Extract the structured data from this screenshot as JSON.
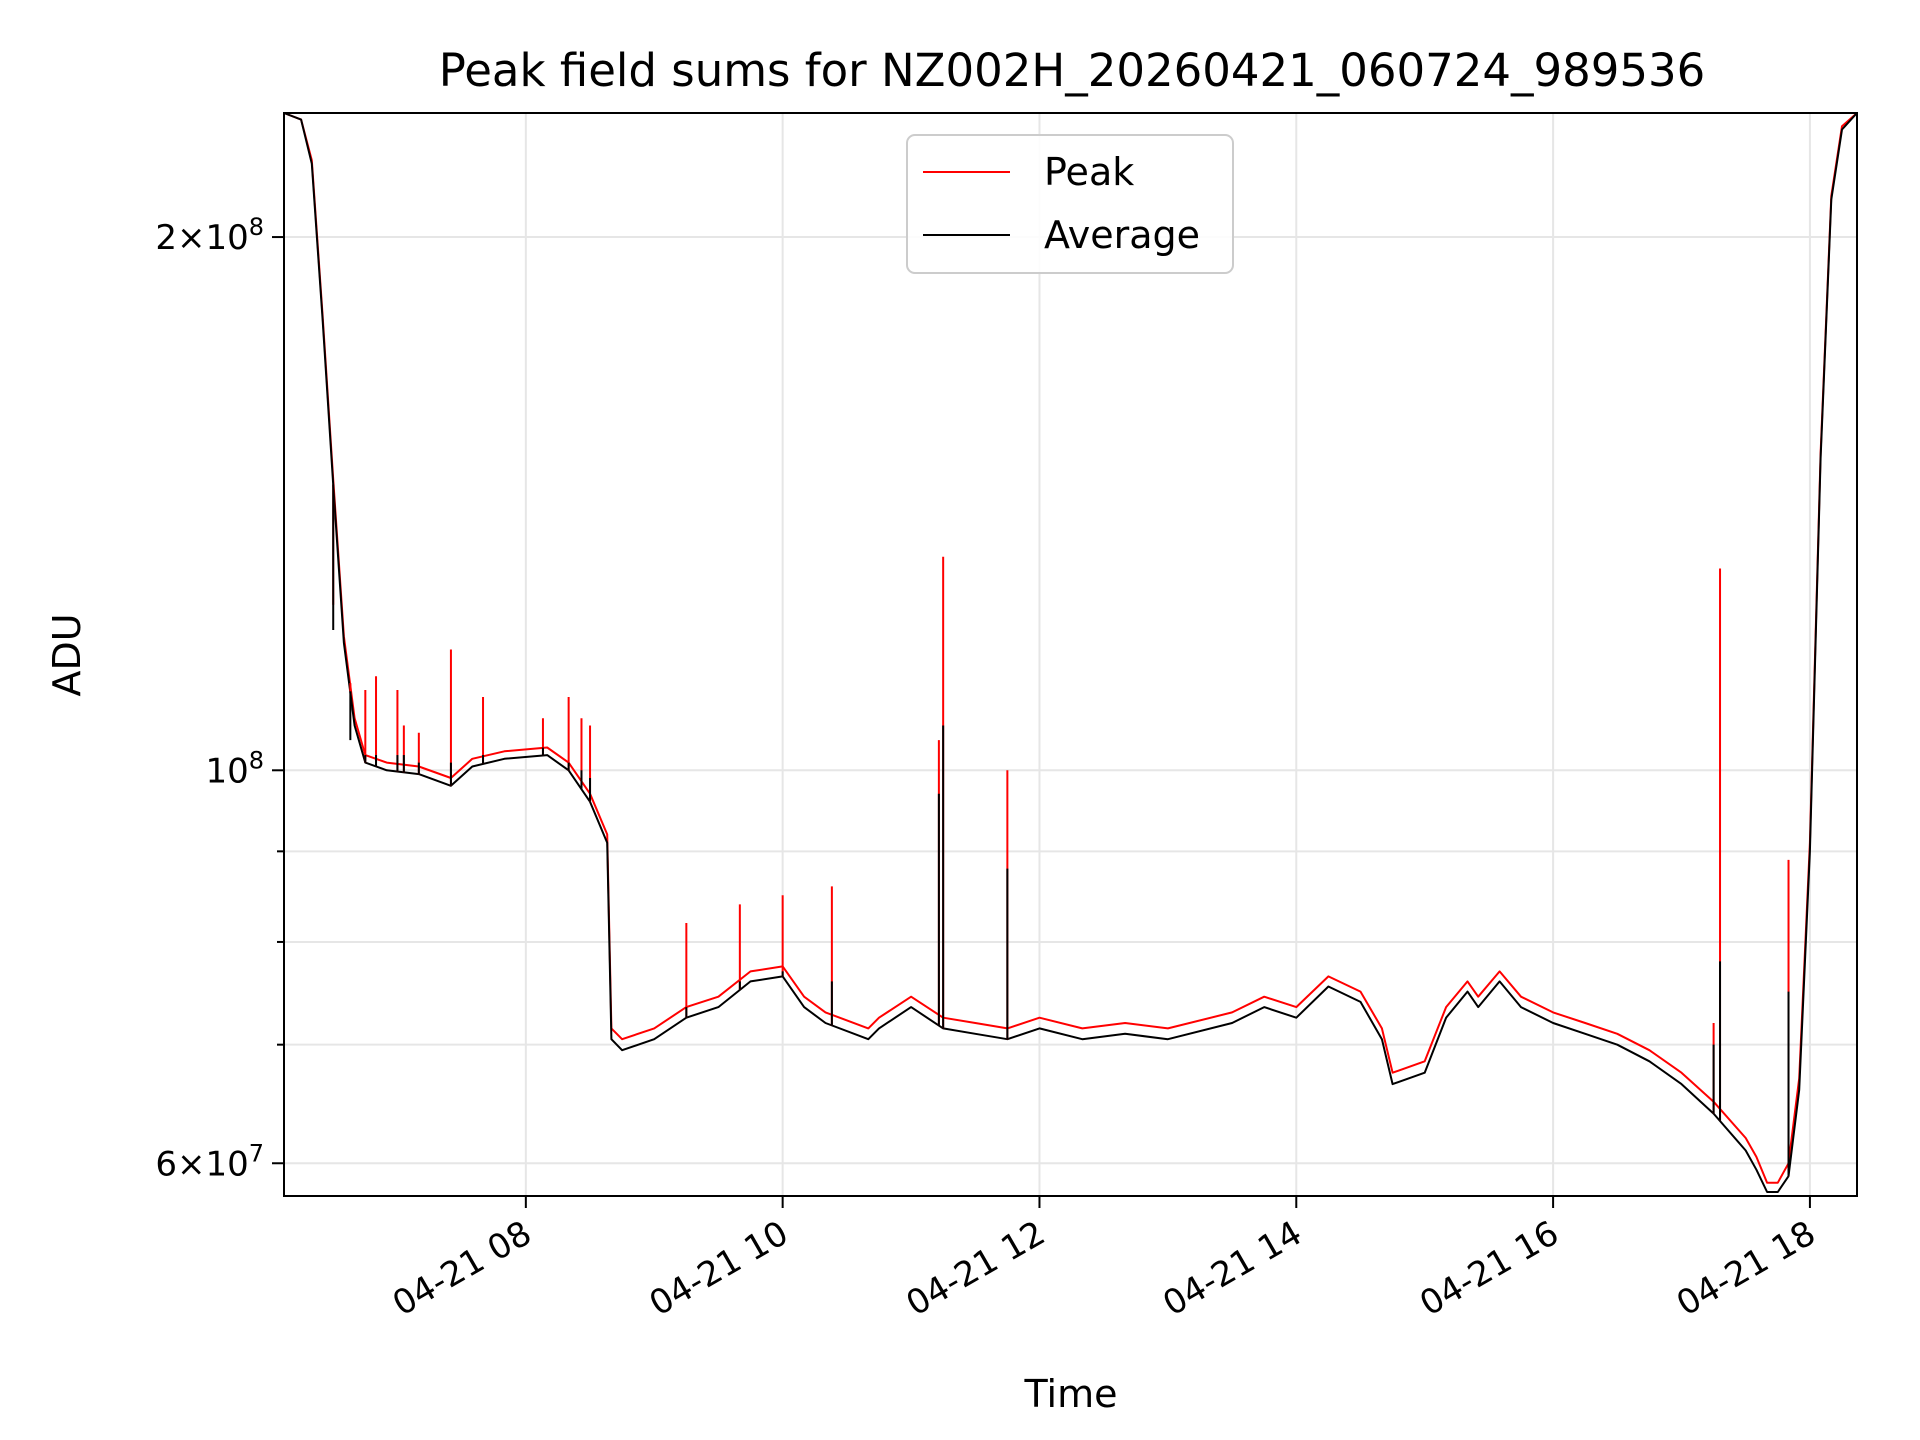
{
  "chart_data": {
    "type": "line",
    "title": "Peak field sums for NZ002H_20260421_060724_989536",
    "xlabel": "Time",
    "ylabel": "ADU",
    "y_scale": "log",
    "ylim": [
      57500000,
      235000000
    ],
    "xlim": [
      "2026-04-21 06:07",
      "2026-04-21 18:22"
    ],
    "grid": true,
    "legend_position": "top-center",
    "x_tick_labels": [
      "04-21 08",
      "04-21 10",
      "04-21 12",
      "04-21 14",
      "04-21 16",
      "04-21 18"
    ],
    "x_ticks": [
      "2026-04-21 08:00",
      "2026-04-21 10:00",
      "2026-04-21 12:00",
      "2026-04-21 14:00",
      "2026-04-21 16:00",
      "2026-04-21 18:00"
    ],
    "y_tick_labels": [
      {
        "value": 200000000,
        "mantissa": "2",
        "exponent": "8"
      },
      {
        "value": 100000000,
        "mantissa": "",
        "exponent": "8"
      },
      {
        "value": 60000000,
        "mantissa": "6",
        "exponent": "7"
      }
    ],
    "y_minor_ticks": [
      70000000,
      80000000,
      90000000
    ],
    "series": [
      {
        "name": "Average",
        "color": "#000000",
        "x": [
          "2026-04-21 06:07",
          "2026-04-21 06:15",
          "2026-04-21 06:20",
          "2026-04-21 06:25",
          "2026-04-21 06:30",
          "2026-04-21 06:35",
          "2026-04-21 06:40",
          "2026-04-21 06:45",
          "2026-04-21 06:55",
          "2026-04-21 07:10",
          "2026-04-21 07:25",
          "2026-04-21 07:35",
          "2026-04-21 07:50",
          "2026-04-21 08:10",
          "2026-04-21 08:20",
          "2026-04-21 08:30",
          "2026-04-21 08:38",
          "2026-04-21 08:40",
          "2026-04-21 08:45",
          "2026-04-21 09:00",
          "2026-04-21 09:15",
          "2026-04-21 09:30",
          "2026-04-21 09:45",
          "2026-04-21 10:00",
          "2026-04-21 10:10",
          "2026-04-21 10:20",
          "2026-04-21 10:40",
          "2026-04-21 10:45",
          "2026-04-21 11:00",
          "2026-04-21 11:15",
          "2026-04-21 11:30",
          "2026-04-21 11:45",
          "2026-04-21 12:00",
          "2026-04-21 12:20",
          "2026-04-21 12:40",
          "2026-04-21 13:00",
          "2026-04-21 13:30",
          "2026-04-21 13:45",
          "2026-04-21 14:00",
          "2026-04-21 14:15",
          "2026-04-21 14:30",
          "2026-04-21 14:40",
          "2026-04-21 14:45",
          "2026-04-21 15:00",
          "2026-04-21 15:10",
          "2026-04-21 15:20",
          "2026-04-21 15:25",
          "2026-04-21 15:35",
          "2026-04-21 15:45",
          "2026-04-21 16:00",
          "2026-04-21 16:15",
          "2026-04-21 16:30",
          "2026-04-21 16:45",
          "2026-04-21 17:00",
          "2026-04-21 17:15",
          "2026-04-21 17:30",
          "2026-04-21 17:35",
          "2026-04-21 17:40",
          "2026-04-21 17:45",
          "2026-04-21 17:50",
          "2026-04-21 17:55",
          "2026-04-21 18:00",
          "2026-04-21 18:05",
          "2026-04-21 18:10",
          "2026-04-21 18:15",
          "2026-04-21 18:22"
        ],
        "y": [
          235000000,
          233000000,
          220000000,
          180000000,
          145000000,
          118000000,
          106000000,
          101000000,
          100000000,
          99500000,
          98000000,
          100500000,
          101500000,
          102000000,
          100000000,
          96000000,
          91000000,
          70500000,
          69500000,
          70500000,
          72500000,
          73500000,
          76000000,
          76500000,
          73500000,
          72000000,
          70500000,
          71500000,
          73500000,
          71500000,
          71000000,
          70500000,
          71500000,
          70500000,
          71000000,
          70500000,
          72000000,
          73500000,
          72500000,
          75500000,
          74000000,
          70500000,
          66500000,
          67500000,
          72500000,
          75000000,
          73500000,
          76000000,
          73500000,
          72000000,
          71000000,
          70000000,
          68500000,
          66500000,
          64000000,
          61000000,
          59500000,
          57800000,
          57800000,
          59000000,
          66000000,
          90000000,
          150000000,
          210000000,
          230000000,
          235000000
        ]
      },
      {
        "name": "Peak",
        "color": "#ff0000",
        "x": [
          "2026-04-21 06:07",
          "2026-04-21 06:15",
          "2026-04-21 06:20",
          "2026-04-21 06:25",
          "2026-04-21 06:30",
          "2026-04-21 06:35",
          "2026-04-21 06:40",
          "2026-04-21 06:45",
          "2026-04-21 06:55",
          "2026-04-21 07:10",
          "2026-04-21 07:25",
          "2026-04-21 07:35",
          "2026-04-21 07:50",
          "2026-04-21 08:10",
          "2026-04-21 08:20",
          "2026-04-21 08:30",
          "2026-04-21 08:38",
          "2026-04-21 08:40",
          "2026-04-21 08:45",
          "2026-04-21 09:00",
          "2026-04-21 09:15",
          "2026-04-21 09:30",
          "2026-04-21 09:45",
          "2026-04-21 10:00",
          "2026-04-21 10:10",
          "2026-04-21 10:20",
          "2026-04-21 10:40",
          "2026-04-21 10:45",
          "2026-04-21 11:00",
          "2026-04-21 11:15",
          "2026-04-21 11:30",
          "2026-04-21 11:45",
          "2026-04-21 12:00",
          "2026-04-21 12:20",
          "2026-04-21 12:40",
          "2026-04-21 13:00",
          "2026-04-21 13:30",
          "2026-04-21 13:45",
          "2026-04-21 14:00",
          "2026-04-21 14:15",
          "2026-04-21 14:30",
          "2026-04-21 14:40",
          "2026-04-21 14:45",
          "2026-04-21 15:00",
          "2026-04-21 15:10",
          "2026-04-21 15:20",
          "2026-04-21 15:25",
          "2026-04-21 15:35",
          "2026-04-21 15:45",
          "2026-04-21 16:00",
          "2026-04-21 16:15",
          "2026-04-21 16:30",
          "2026-04-21 16:45",
          "2026-04-21 17:00",
          "2026-04-21 17:15",
          "2026-04-21 17:30",
          "2026-04-21 17:35",
          "2026-04-21 17:40",
          "2026-04-21 17:45",
          "2026-04-21 17:50",
          "2026-04-21 17:55",
          "2026-04-21 18:00",
          "2026-04-21 18:05",
          "2026-04-21 18:10",
          "2026-04-21 18:15",
          "2026-04-21 18:22"
        ],
        "y": [
          235000000,
          233000000,
          221000000,
          181000000,
          146000000,
          119000000,
          107000000,
          102000000,
          101000000,
          100500000,
          99000000,
          101500000,
          102500000,
          103000000,
          101000000,
          97000000,
          92000000,
          71500000,
          70500000,
          71500000,
          73500000,
          74500000,
          77000000,
          77500000,
          74500000,
          73000000,
          71500000,
          72500000,
          74500000,
          72500000,
          72000000,
          71500000,
          72500000,
          71500000,
          72000000,
          71500000,
          73000000,
          74500000,
          73500000,
          76500000,
          75000000,
          71500000,
          67500000,
          68500000,
          73500000,
          76000000,
          74500000,
          77000000,
          74500000,
          73000000,
          72000000,
          71000000,
          69500000,
          67500000,
          65000000,
          62000000,
          60500000,
          58500000,
          58500000,
          60000000,
          67000000,
          91000000,
          151000000,
          211000000,
          231000000,
          235000000
        ]
      }
    ],
    "spikes": [
      {
        "x": "2026-04-21 06:30",
        "peak": 124000000,
        "average": 120000000
      },
      {
        "x": "2026-04-21 06:38",
        "peak": 112000000,
        "average": 104000000
      },
      {
        "x": "2026-04-21 06:45",
        "peak": 111000000,
        "average": 102000000
      },
      {
        "x": "2026-04-21 06:50",
        "peak": 113000000,
        "average": 102000000
      },
      {
        "x": "2026-04-21 07:00",
        "peak": 111000000,
        "average": 102000000
      },
      {
        "x": "2026-04-21 07:03",
        "peak": 106000000,
        "average": 102000000
      },
      {
        "x": "2026-04-21 07:10",
        "peak": 105000000,
        "average": 101000000
      },
      {
        "x": "2026-04-21 07:25",
        "peak": 117000000,
        "average": 101000000
      },
      {
        "x": "2026-04-21 07:40",
        "peak": 110000000,
        "average": 102000000
      },
      {
        "x": "2026-04-21 08:08",
        "peak": 107000000,
        "average": 103000000
      },
      {
        "x": "2026-04-21 08:20",
        "peak": 110000000,
        "average": 101000000
      },
      {
        "x": "2026-04-21 08:26",
        "peak": 107000000,
        "average": 100000000
      },
      {
        "x": "2026-04-21 08:30",
        "peak": 106000000,
        "average": 99000000
      },
      {
        "x": "2026-04-21 09:15",
        "peak": 82000000,
        "average": 73500000
      },
      {
        "x": "2026-04-21 09:40",
        "peak": 84000000,
        "average": 76000000
      },
      {
        "x": "2026-04-21 10:00",
        "peak": 85000000,
        "average": 77000000
      },
      {
        "x": "2026-04-21 10:23",
        "peak": 86000000,
        "average": 76000000
      },
      {
        "x": "2026-04-21 11:13",
        "peak": 104000000,
        "average": 97000000
      },
      {
        "x": "2026-04-21 11:15",
        "peak": 132000000,
        "average": 106000000
      },
      {
        "x": "2026-04-21 11:45",
        "peak": 100000000,
        "average": 88000000
      },
      {
        "x": "2026-04-21 17:15",
        "peak": 72000000,
        "average": 70000000
      },
      {
        "x": "2026-04-21 17:18",
        "peak": 130000000,
        "average": 78000000
      },
      {
        "x": "2026-04-21 17:50",
        "peak": 89000000,
        "average": 75000000
      }
    ]
  }
}
